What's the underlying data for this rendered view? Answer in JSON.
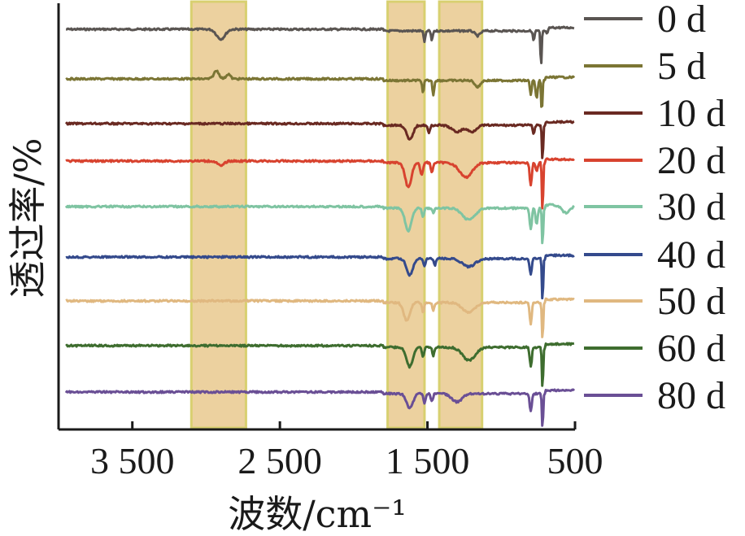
{
  "chart_data": {
    "type": "line",
    "xlabel": "波数/cm⁻¹",
    "ylabel": "透过率/%",
    "x_axis": {
      "reversed": true,
      "range": [
        4000,
        500
      ],
      "ticks": [
        3500,
        2500,
        1500,
        500
      ],
      "tick_labels": [
        "3 500",
        "2 500",
        "1 500",
        "500"
      ]
    },
    "highlight_bands": [
      {
        "from": 3100,
        "to": 2730,
        "color": "#e9c98e"
      },
      {
        "from": 1770,
        "to": 1520,
        "color": "#e9c98e"
      },
      {
        "from": 1420,
        "to": 1130,
        "color": "#e9c98e"
      }
    ],
    "legend_position": "right",
    "series": [
      {
        "name": "0 d",
        "color": "#5a5552",
        "features": [
          [
            2900,
            12,
            40
          ],
          [
            1520,
            14,
            8
          ],
          [
            1470,
            12,
            8
          ],
          [
            1160,
            6,
            25
          ],
          [
            780,
            12,
            8
          ],
          [
            730,
            45,
            6
          ],
          [
            690,
            8,
            10
          ]
        ]
      },
      {
        "name": "5 d",
        "color": "#7b7534",
        "features": [
          [
            2930,
            -10,
            25
          ],
          [
            2850,
            -6,
            20
          ],
          [
            1530,
            16,
            8
          ],
          [
            1460,
            18,
            8
          ],
          [
            1160,
            8,
            25
          ],
          [
            800,
            18,
            8
          ],
          [
            760,
            22,
            10
          ],
          [
            725,
            40,
            6
          ]
        ]
      },
      {
        "name": "10 d",
        "color": "#6a2a22",
        "features": [
          [
            1620,
            18,
            30
          ],
          [
            1490,
            10,
            10
          ],
          [
            1300,
            8,
            50
          ],
          [
            1200,
            8,
            40
          ],
          [
            780,
            12,
            8
          ],
          [
            720,
            45,
            6
          ]
        ]
      },
      {
        "name": "20 d",
        "color": "#d8432f",
        "features": [
          [
            2900,
            6,
            30
          ],
          [
            1630,
            30,
            30
          ],
          [
            1540,
            16,
            12
          ],
          [
            1470,
            12,
            10
          ],
          [
            1240,
            18,
            60
          ],
          [
            800,
            28,
            10
          ],
          [
            760,
            10,
            10
          ],
          [
            720,
            62,
            6
          ]
        ]
      },
      {
        "name": "30 d",
        "color": "#7fc4a2",
        "features": [
          [
            1630,
            28,
            30
          ],
          [
            1530,
            10,
            10
          ],
          [
            1460,
            6,
            10
          ],
          [
            1220,
            14,
            60
          ],
          [
            800,
            26,
            10
          ],
          [
            760,
            20,
            10
          ],
          [
            720,
            48,
            6
          ],
          [
            560,
            10,
            40
          ]
        ]
      },
      {
        "name": "40 d",
        "color": "#344a8c",
        "features": [
          [
            1620,
            20,
            30
          ],
          [
            1520,
            10,
            10
          ],
          [
            1450,
            8,
            10
          ],
          [
            1220,
            10,
            60
          ],
          [
            800,
            20,
            10
          ],
          [
            720,
            54,
            6
          ]
        ]
      },
      {
        "name": "50 d",
        "color": "#e0b880",
        "features": [
          [
            1640,
            22,
            30
          ],
          [
            1530,
            12,
            10
          ],
          [
            1460,
            10,
            10
          ],
          [
            1220,
            12,
            60
          ],
          [
            800,
            26,
            10
          ],
          [
            720,
            48,
            6
          ]
        ]
      },
      {
        "name": "60 d",
        "color": "#3e6d2f",
        "features": [
          [
            1620,
            24,
            30
          ],
          [
            1530,
            12,
            10
          ],
          [
            1460,
            10,
            10
          ],
          [
            1220,
            16,
            60
          ],
          [
            800,
            24,
            10
          ],
          [
            720,
            52,
            6
          ]
        ]
      },
      {
        "name": "80 d",
        "color": "#6a4f95",
        "features": [
          [
            1620,
            18,
            30
          ],
          [
            1520,
            12,
            10
          ],
          [
            1470,
            10,
            10
          ],
          [
            1300,
            10,
            50
          ],
          [
            800,
            22,
            10
          ],
          [
            720,
            44,
            6
          ]
        ]
      }
    ]
  }
}
